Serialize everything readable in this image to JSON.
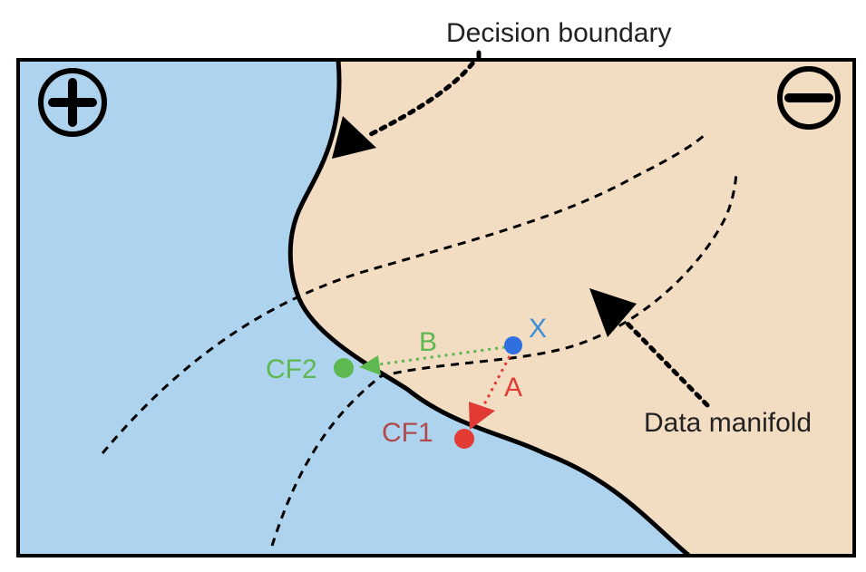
{
  "labels": {
    "decision_boundary": "Decision boundary",
    "data_manifold": "Data manifold",
    "point_x": "X",
    "counterfactual_1": "CF1",
    "counterfactual_2": "CF2",
    "path_a": "A",
    "path_b": "B"
  },
  "icons": {
    "positive_region": "plus-circle-icon",
    "negative_region": "minus-circle-icon"
  },
  "colors": {
    "positive_region": "#aed3ee",
    "negative_region": "#f2dcc2",
    "boundary": "#000000",
    "point_x": "#2f6fe0",
    "counterfactual_1": "#e23a34",
    "counterfactual_2": "#5db94f",
    "label_x": "#3a8fd6",
    "label_cf1": "#b04a4a",
    "label_cf2": "#5db94f"
  }
}
